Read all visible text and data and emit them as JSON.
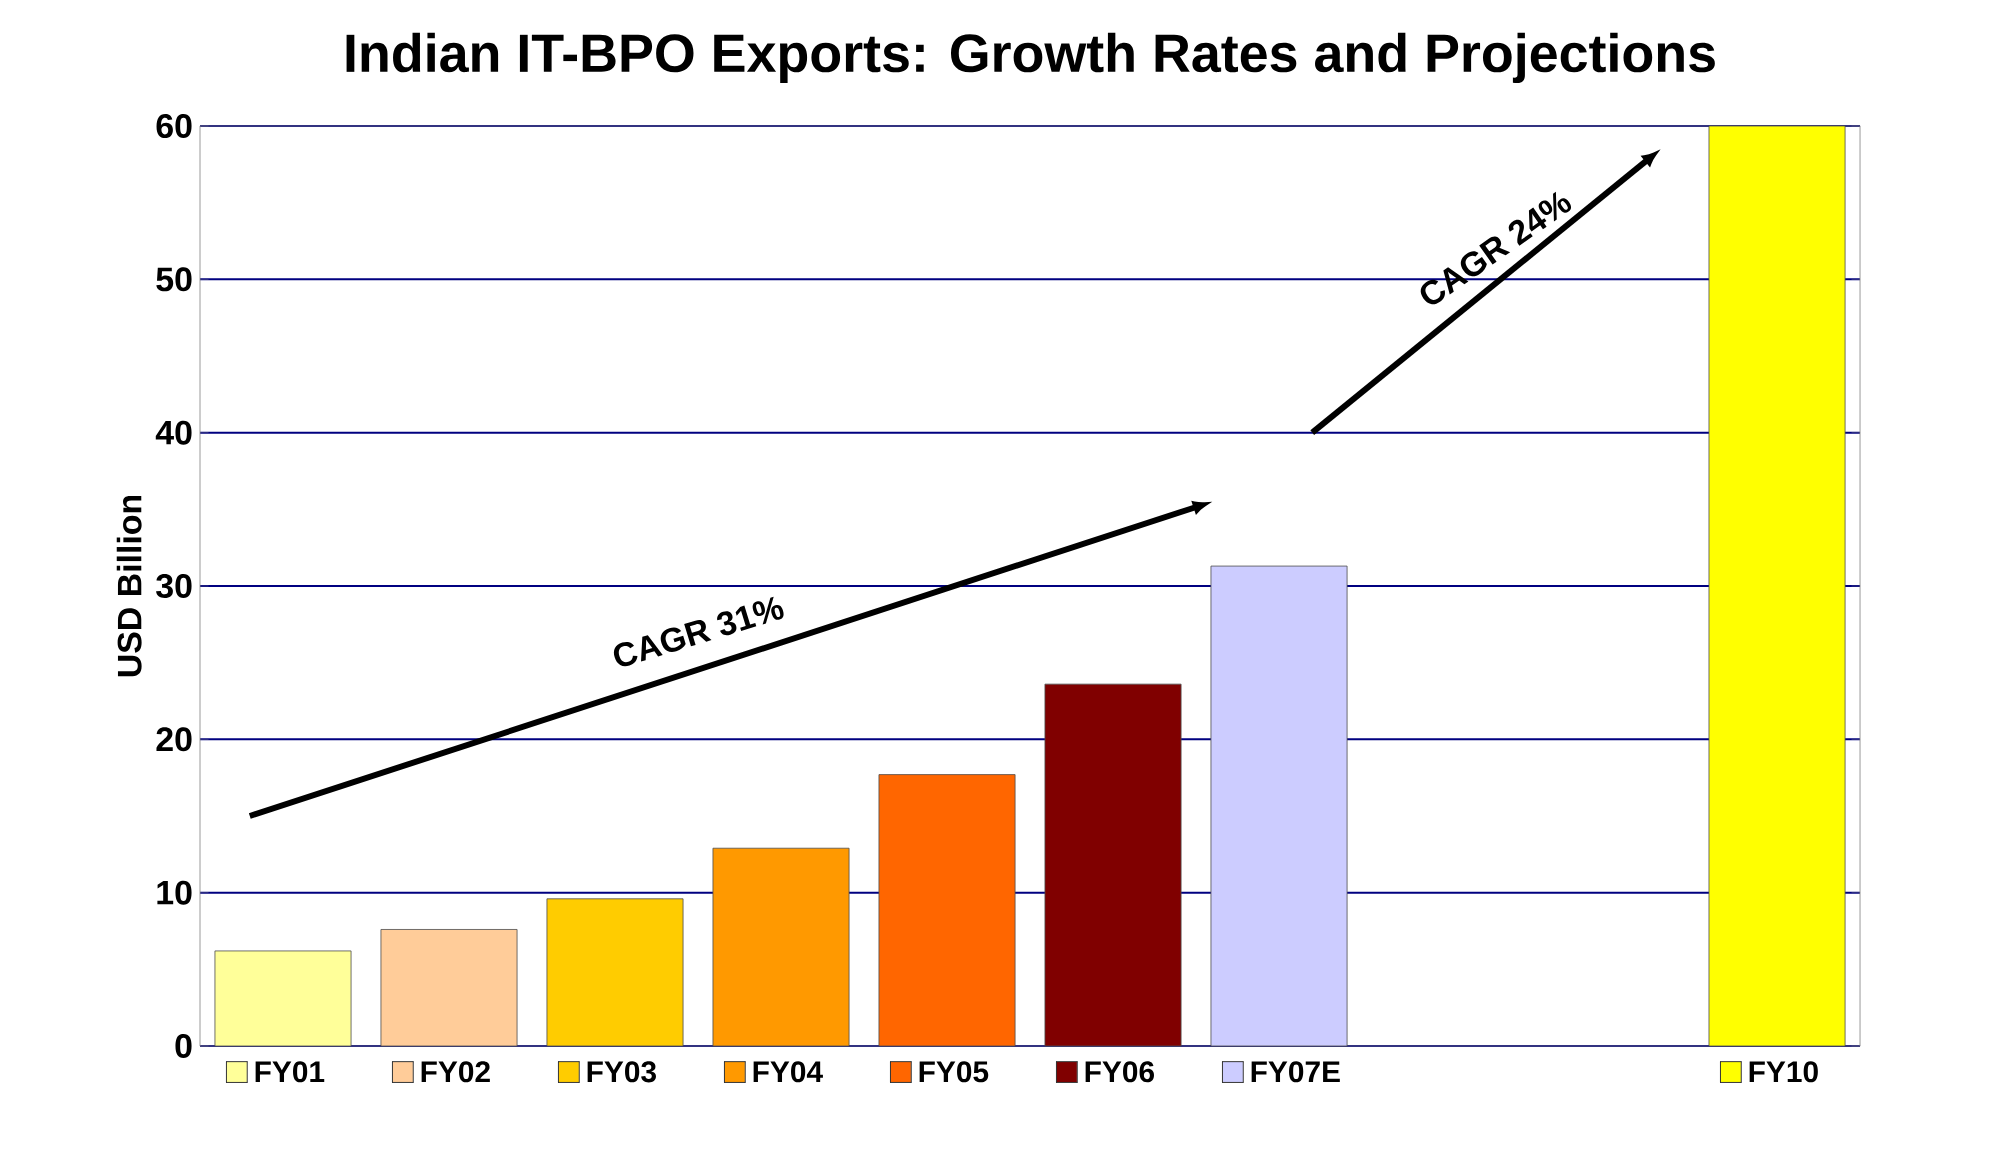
{
  "chart_data": {
    "type": "bar",
    "title": "Indian IT-BPO Exports: Growth Rates and Projections",
    "ylabel": "USD Billion",
    "categories": [
      "FY01",
      "FY02",
      "FY03",
      "FY04",
      "FY05",
      "FY06",
      "FY07E",
      null,
      null,
      "FY10"
    ],
    "values": [
      6.2,
      7.6,
      9.6,
      12.9,
      17.7,
      23.6,
      31.3,
      null,
      null,
      60
    ],
    "colors": [
      "#ffff99",
      "#ffcc99",
      "#ffcc00",
      "#ff9900",
      "#ff6600",
      "#800000",
      "#ccccff",
      "#808080",
      "#808080",
      "#ffff00"
    ],
    "ylim": [
      0,
      60
    ],
    "yticks": [
      0,
      10,
      20,
      30,
      40,
      50,
      60
    ],
    "grid": "y",
    "annotations": [
      "CAGR 31%",
      "CAGR 24%"
    ]
  }
}
